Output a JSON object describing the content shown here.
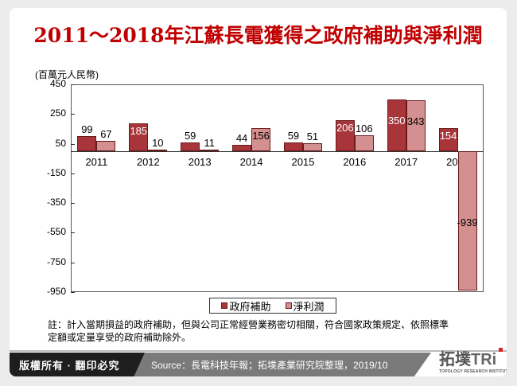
{
  "title": "2011～2018年江蘇長電獲得之政府補助與淨利潤",
  "chart_data": {
    "type": "bar",
    "title": "2011～2018年江蘇長電獲得之政府補助與淨利潤",
    "ylabel": "(百萬元人民幣)",
    "xlabel": "",
    "categories": [
      "2011",
      "2012",
      "2013",
      "2014",
      "2015",
      "2016",
      "2017",
      "2018"
    ],
    "series": [
      {
        "name": "政府補助",
        "color": "#a8353a",
        "values": [
          99,
          185,
          59,
          44,
          59,
          206,
          350,
          154
        ]
      },
      {
        "name": "淨利潤",
        "color": "#d48f90",
        "values": [
          67,
          10,
          11,
          156,
          51,
          106,
          343,
          -939
        ]
      }
    ],
    "ylim": [
      -950,
      450
    ],
    "yticks": [
      450,
      250,
      50,
      -150,
      -350,
      -550,
      -750,
      -950
    ],
    "grid": false,
    "legend_position": "bottom"
  },
  "unit_label": "(百萬元人民幣)",
  "yticks": [
    "450",
    "250",
    "50",
    "-150",
    "-350",
    "-550",
    "-750",
    "-950"
  ],
  "categories": [
    "2011",
    "2012",
    "2013",
    "2014",
    "2015",
    "2016",
    "2017",
    "2018"
  ],
  "bar_labels": {
    "s0": [
      "99",
      "185",
      "59",
      "44",
      "59",
      "206",
      "350",
      "154"
    ],
    "s1": [
      "67",
      "10",
      "11",
      "156",
      "51",
      "106",
      "343",
      "-939"
    ]
  },
  "legend": {
    "s0": "政府補助",
    "s1": "淨利潤"
  },
  "note": {
    "line1": "註：計入當期損益的政府補助，但與公司正常經營業務密切相關，符合國家政策規定、依照標準",
    "line2": "定額或定量享受的政府補助除外。"
  },
  "footer": {
    "copyright": "版權所有 · 翻印必究",
    "source": "Source：長電科技年報；拓墣產業研究院整理，2019/10",
    "logo_cn": "拓墣",
    "logo_tri": "TRi",
    "logo_sub": "TOPOLOGY RESEARCH INSTITUTE"
  }
}
